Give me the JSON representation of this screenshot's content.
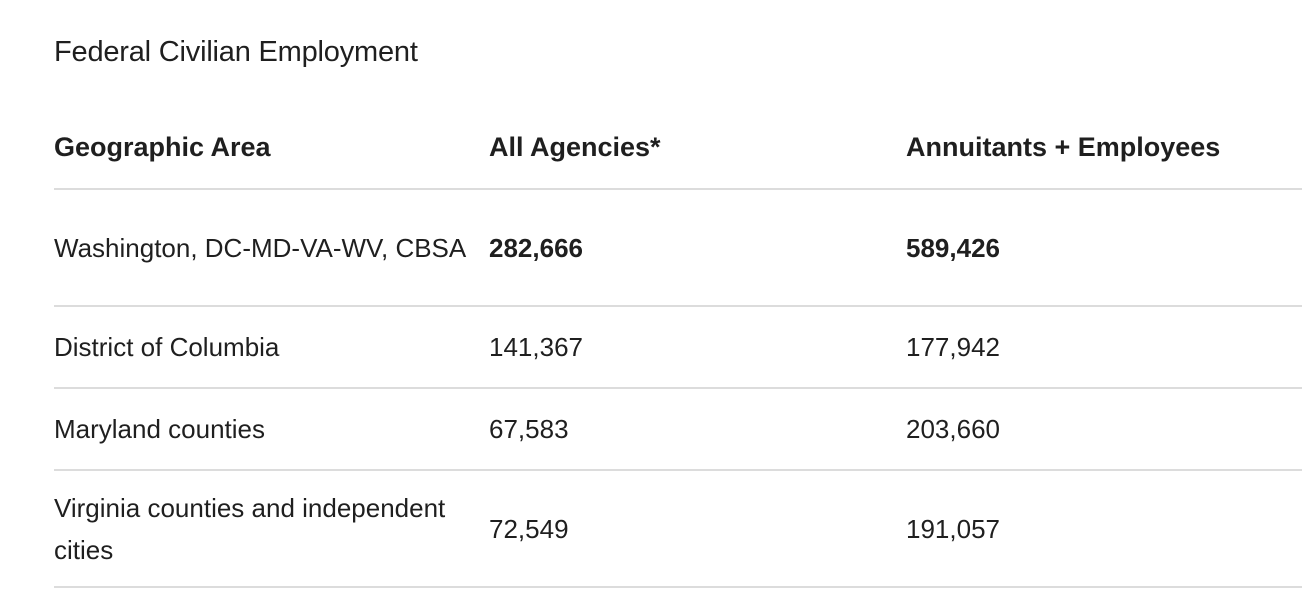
{
  "caption": "Federal Civilian Employment",
  "table": {
    "headers": [
      "Geographic Area",
      "All Agencies*",
      "Annuitants + Employees"
    ],
    "rows": [
      {
        "area": "Washington, DC-MD-VA-WV, CBSA",
        "all_agencies": "282,666",
        "annuitants_employees": "589,426",
        "bold": true
      },
      {
        "area": "District of Columbia",
        "all_agencies": "141,367",
        "annuitants_employees": "177,942",
        "bold": false
      },
      {
        "area": "Maryland counties",
        "all_agencies": "67,583",
        "annuitants_employees": "203,660",
        "bold": false
      },
      {
        "area": "Virginia counties and independent cities",
        "all_agencies": "72,549",
        "annuitants_employees": "191,057",
        "bold": false
      }
    ]
  }
}
